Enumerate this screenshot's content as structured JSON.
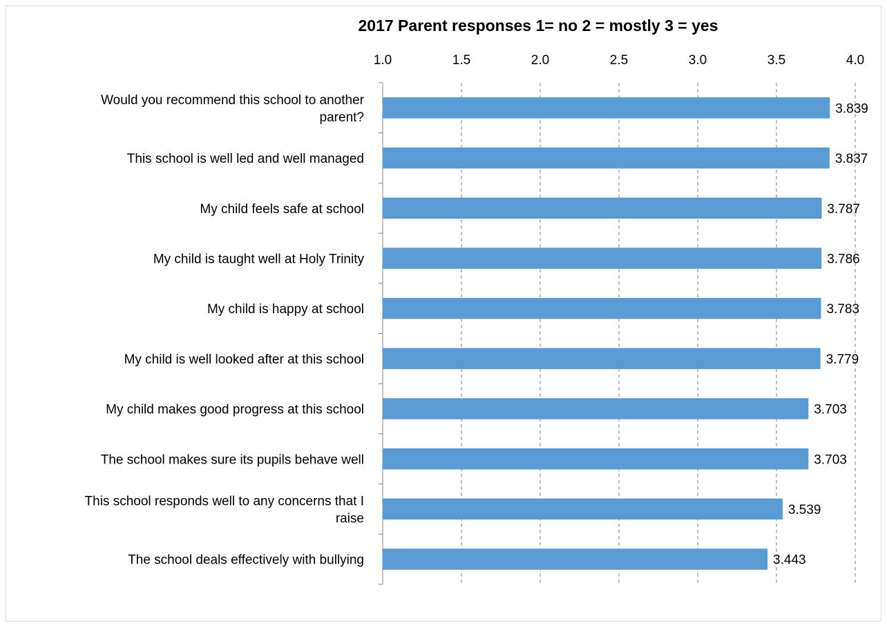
{
  "chart_data": {
    "type": "bar",
    "orientation": "horizontal",
    "title": "2017 Parent responses 1= no 2 = mostly 3 = yes",
    "xlabel": "",
    "ylabel": "",
    "xlim": [
      1.0,
      4.0
    ],
    "ticks": [
      "1.0",
      "1.5",
      "2.0",
      "2.5",
      "3.0",
      "3.5",
      "4.0"
    ],
    "grid": "vertical-dashed",
    "legend": "none",
    "bar_color": "#5b9bd5",
    "categories": [
      [
        "Would you recommend this school to another",
        "parent?"
      ],
      [
        "This school is well led and well managed"
      ],
      [
        "My child feels safe at school"
      ],
      [
        "My child is taught well at Holy Trinity"
      ],
      [
        "My child is happy at school"
      ],
      [
        "My child is well looked after at this school"
      ],
      [
        "My child makes good progress at this school"
      ],
      [
        "The school makes sure its pupils behave well"
      ],
      [
        "This school responds well to any concerns that I",
        "raise"
      ],
      [
        "The school deals effectively with bullying"
      ]
    ],
    "values": [
      3.839,
      3.837,
      3.787,
      3.786,
      3.783,
      3.779,
      3.703,
      3.703,
      3.539,
      3.443
    ],
    "value_labels": [
      "3.839",
      "3.837",
      "3.787",
      "3.786",
      "3.783",
      "3.779",
      "3.703",
      "3.703",
      "3.539",
      "3.443"
    ]
  }
}
